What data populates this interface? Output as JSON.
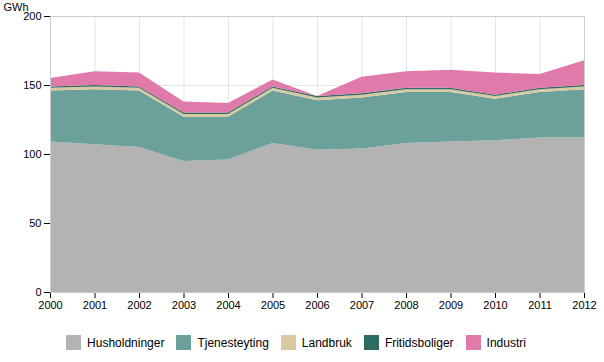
{
  "chart_data": {
    "type": "area",
    "stacked": true,
    "x": [
      2000,
      2001,
      2002,
      2003,
      2004,
      2005,
      2006,
      2007,
      2008,
      2009,
      2010,
      2011,
      2012
    ],
    "series": [
      {
        "name": "Husholdninger",
        "color": "#b3b3b3",
        "values": [
          109,
          107,
          105,
          95,
          96,
          108,
          103,
          104,
          108,
          109,
          110,
          112,
          112
        ]
      },
      {
        "name": "Tjenesteyting",
        "color": "#6ca09a",
        "values": [
          37,
          40,
          41,
          32,
          31,
          38,
          36,
          37,
          37,
          36,
          30,
          33,
          35
        ]
      },
      {
        "name": "Landbruk",
        "color": "#d8c9a0",
        "values": [
          2,
          2,
          2,
          2,
          2,
          2,
          2,
          2,
          2,
          2,
          2,
          2,
          2
        ]
      },
      {
        "name": "Fritidsboliger",
        "color": "#2e6b63",
        "values": [
          1,
          1,
          1,
          1,
          1,
          1,
          1,
          1,
          1,
          1,
          1,
          1,
          1
        ]
      },
      {
        "name": "Industri",
        "color": "#e07aaa",
        "values": [
          6,
          10,
          10,
          8,
          7,
          5,
          0,
          12,
          12,
          13,
          16,
          10,
          18
        ]
      }
    ],
    "ylabel": "GWh",
    "xlim": [
      2000,
      2012
    ],
    "xticks": [
      2000,
      2001,
      2002,
      2003,
      2004,
      2005,
      2006,
      2007,
      2008,
      2009,
      2010,
      2011,
      2012
    ],
    "ylim": [
      0,
      200
    ],
    "yticks": [
      0,
      50,
      100,
      150,
      200
    ],
    "grid": true,
    "legend": "bottom"
  }
}
